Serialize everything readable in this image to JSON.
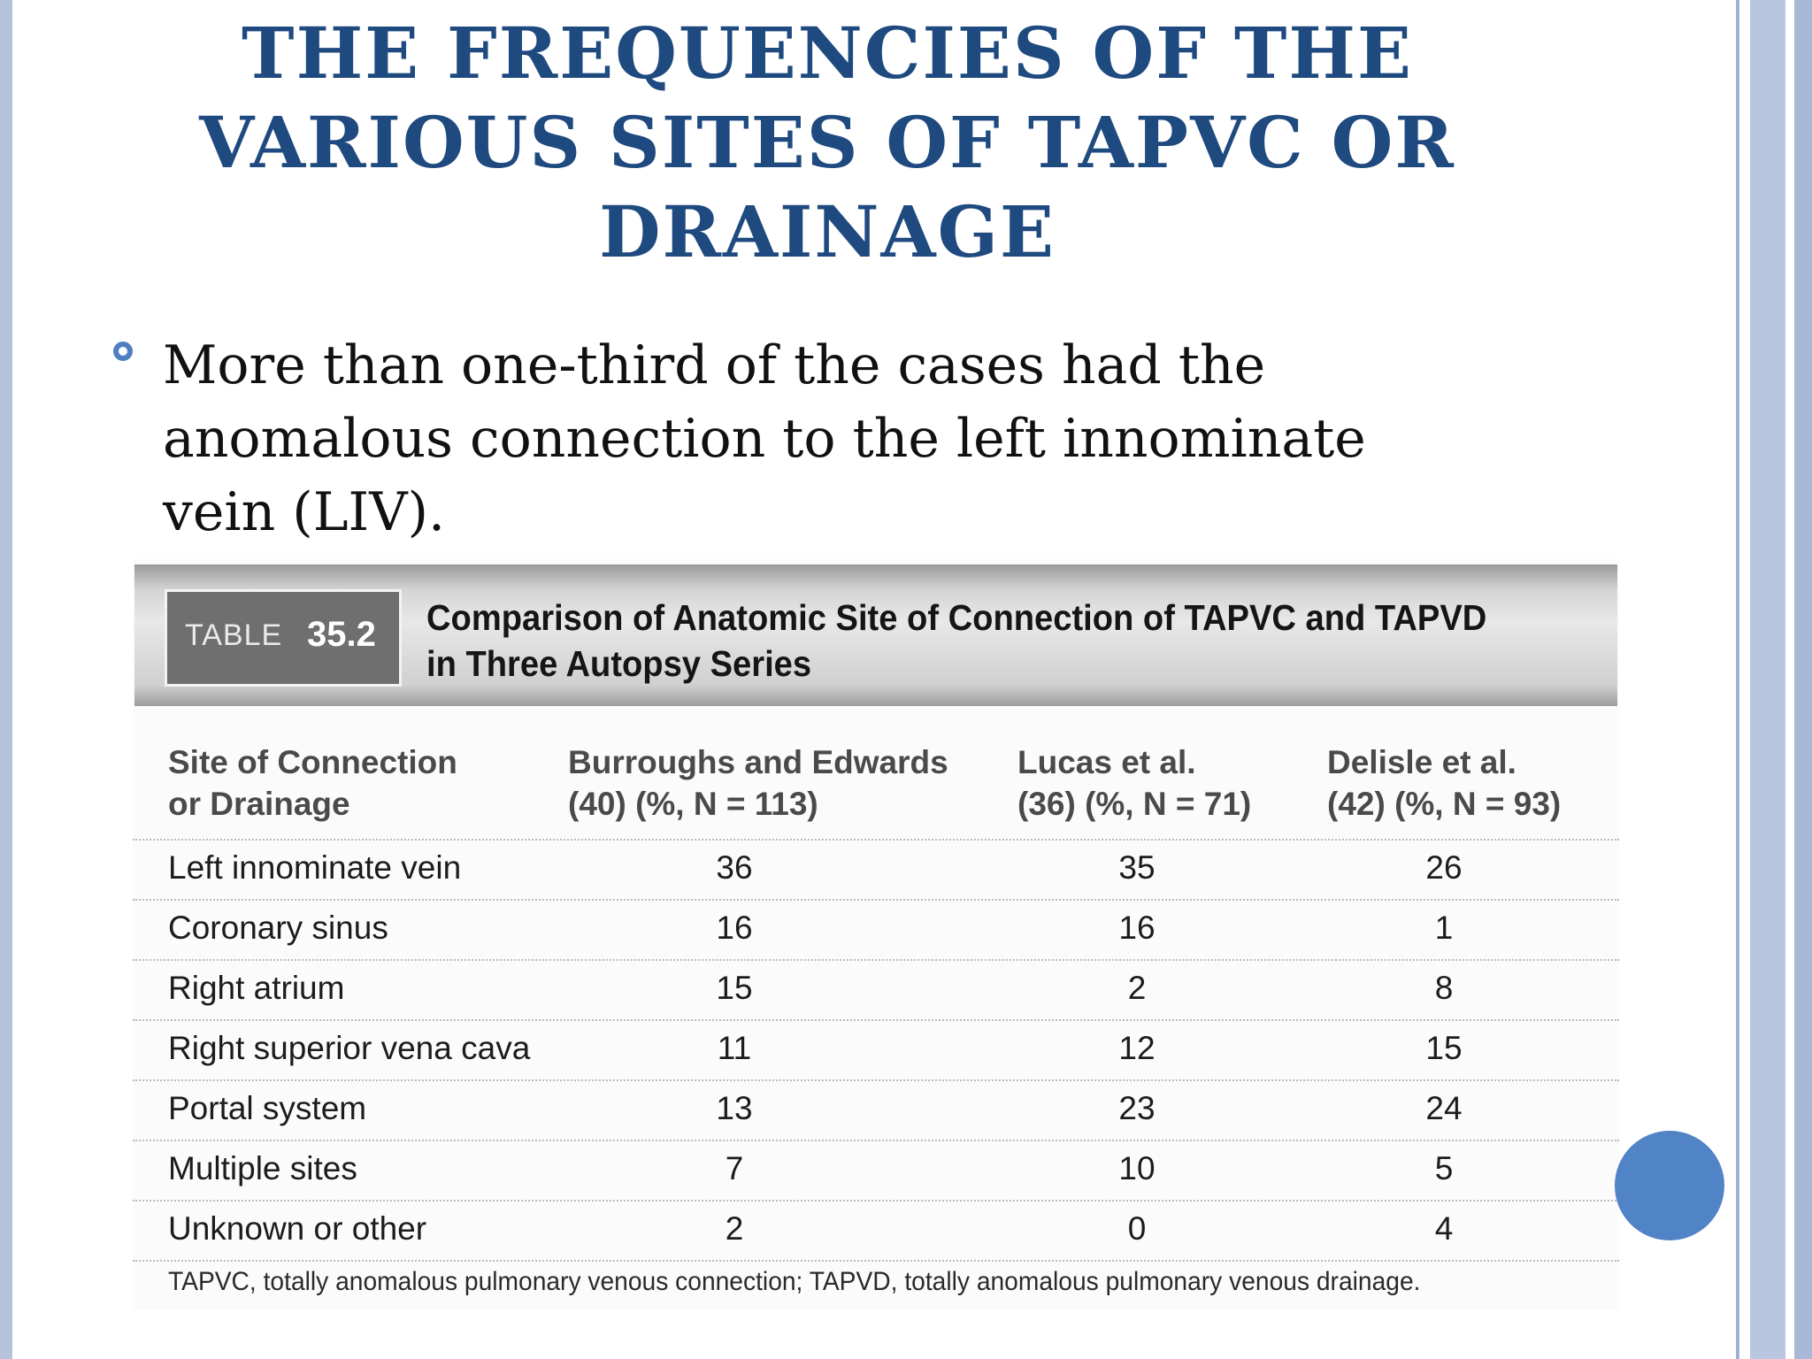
{
  "slide": {
    "title": "THE FREQUENCIES OF THE\nVARIOUS SITES OF TAPVC OR\nDRAINAGE",
    "bullet": "More than one-third of the cases had the anomalous connection to the left innominate vein (LIV)."
  },
  "table": {
    "badge_word": "TABLE",
    "badge_number": "35.2",
    "caption": "Comparison of Anatomic Site of Connection of TAPVC and TAPVD in Three Autopsy Series",
    "columns": [
      "Site of Connection\nor Drainage",
      "Burroughs and Edwards\n(40) (%, N = 113)",
      "Lucas et al.\n(36) (%, N = 71)",
      "Delisle et al.\n(42) (%, N = 93)"
    ],
    "rows": [
      {
        "site": "Left innominate vein",
        "burroughs": "36",
        "lucas": "35",
        "delisle": "26"
      },
      {
        "site": "Coronary sinus",
        "burroughs": "16",
        "lucas": "16",
        "delisle": "1"
      },
      {
        "site": "Right atrium",
        "burroughs": "15",
        "lucas": "2",
        "delisle": "8"
      },
      {
        "site": "Right superior vena cava",
        "burroughs": "11",
        "lucas": "12",
        "delisle": "15"
      },
      {
        "site": "Portal system",
        "burroughs": "13",
        "lucas": "23",
        "delisle": "24"
      },
      {
        "site": "Multiple sites",
        "burroughs": "7",
        "lucas": "10",
        "delisle": "5"
      },
      {
        "site": "Unknown or other",
        "burroughs": "2",
        "lucas": "0",
        "delisle": "4"
      }
    ],
    "footnote": "TAPVC, totally anomalous pulmonary venous connection; TAPVD, totally anomalous pulmonary venous drainage."
  },
  "colors": {
    "title": "#1f4a80",
    "bullet_marker": "#4f7fc1",
    "frame": "#b4c2dc",
    "nav_circle": "#5183c7"
  }
}
